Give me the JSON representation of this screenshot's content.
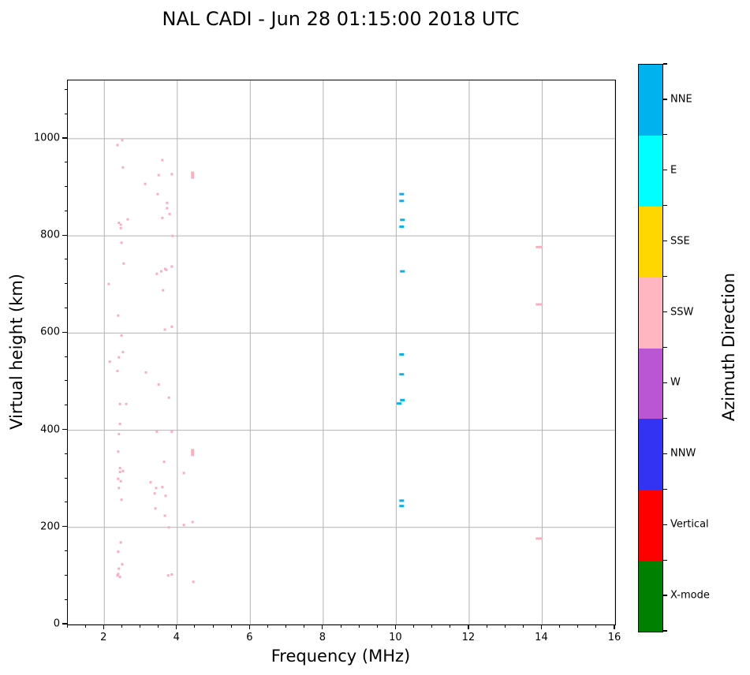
{
  "chart_data": {
    "type": "scatter",
    "title": "NAL CADI - Jun 28 01:15:00 2018 UTC",
    "xlabel": "Frequency (MHz)",
    "ylabel": "Virtual height (km)",
    "colorbar_label": "Azimuth Direction",
    "xlim": [
      1,
      16
    ],
    "ylim": [
      0,
      1120
    ],
    "xticks": [
      2,
      4,
      6,
      8,
      10,
      12,
      14,
      16
    ],
    "yticks": [
      0,
      200,
      400,
      600,
      800,
      1000
    ],
    "x_minor_step": 0.5,
    "y_minor_step": 50,
    "grid": "on",
    "grid_color": "#b3b3b3",
    "legend_position": "right-colorbar",
    "colorbar_categories": [
      {
        "label": "NNE",
        "color": "#00B2EE"
      },
      {
        "label": "E",
        "color": "#00FFFF"
      },
      {
        "label": "SSE",
        "color": "#FFD700"
      },
      {
        "label": "SSW",
        "color": "#FFB6C1"
      },
      {
        "label": "W",
        "color": "#BA55D3"
      },
      {
        "label": "NNW",
        "color": "#3333F3"
      },
      {
        "label": "Vertical",
        "color": "#FF0000"
      },
      {
        "label": "X-mode",
        "color": "#008000"
      }
    ],
    "series": [
      {
        "name": "ssw-echo-points",
        "azimuth": "SSW",
        "color": "#FAAFC0",
        "marker": "dot",
        "points": [
          [
            2.49,
            997
          ],
          [
            2.36,
            987
          ],
          [
            3.59,
            956
          ],
          [
            2.51,
            941
          ],
          [
            3.49,
            925
          ],
          [
            3.85,
            927
          ],
          [
            3.12,
            907
          ],
          [
            3.46,
            886
          ],
          [
            3.72,
            868
          ],
          [
            3.72,
            857
          ],
          [
            3.79,
            845
          ],
          [
            3.59,
            837
          ],
          [
            2.64,
            834
          ],
          [
            2.4,
            827
          ],
          [
            2.45,
            823
          ],
          [
            2.45,
            816
          ],
          [
            3.87,
            800
          ],
          [
            2.47,
            786
          ],
          [
            2.53,
            743
          ],
          [
            3.85,
            737
          ],
          [
            3.67,
            732
          ],
          [
            3.7,
            730
          ],
          [
            3.56,
            727
          ],
          [
            3.44,
            722
          ],
          [
            2.12,
            701
          ],
          [
            3.61,
            688
          ],
          [
            2.38,
            636
          ],
          [
            3.85,
            613
          ],
          [
            3.66,
            607
          ],
          [
            2.47,
            595
          ],
          [
            2.51,
            561
          ],
          [
            2.4,
            550
          ],
          [
            2.15,
            541
          ],
          [
            2.36,
            522
          ],
          [
            3.14,
            519
          ],
          [
            3.49,
            494
          ],
          [
            3.77,
            467
          ],
          [
            2.43,
            454
          ],
          [
            2.6,
            454
          ],
          [
            2.43,
            413
          ],
          [
            3.44,
            397
          ],
          [
            3.85,
            397
          ],
          [
            2.4,
            392
          ],
          [
            2.38,
            356
          ],
          [
            3.64,
            335
          ],
          [
            2.43,
            322
          ],
          [
            2.51,
            316
          ],
          [
            2.43,
            314
          ],
          [
            4.18,
            312
          ],
          [
            2.38,
            300
          ],
          [
            2.45,
            295
          ],
          [
            3.27,
            293
          ],
          [
            3.42,
            281
          ],
          [
            2.4,
            281
          ],
          [
            3.59,
            283
          ],
          [
            3.38,
            270
          ],
          [
            3.68,
            265
          ],
          [
            2.47,
            257
          ],
          [
            3.4,
            239
          ],
          [
            3.66,
            224
          ],
          [
            4.42,
            211
          ],
          [
            4.18,
            205
          ],
          [
            3.77,
            200
          ],
          [
            2.45,
            169
          ],
          [
            2.38,
            150
          ],
          [
            2.49,
            124
          ],
          [
            2.4,
            115
          ],
          [
            2.38,
            104
          ],
          [
            3.85,
            103
          ],
          [
            2.36,
            101
          ],
          [
            3.75,
            101
          ],
          [
            2.43,
            98
          ],
          [
            4.44,
            88
          ]
        ]
      },
      {
        "name": "ssw-echo-tall-marks",
        "azimuth": "SSW",
        "color": "#FAAFC0",
        "marker": "tall",
        "points": [
          [
            4.42,
            925
          ],
          [
            4.42,
            354
          ]
        ]
      },
      {
        "name": "nne-echo-dashes",
        "azimuth": "NNE",
        "color": "#00B2EE",
        "marker": "dash",
        "points": [
          [
            10.15,
            886
          ],
          [
            10.15,
            872
          ],
          [
            10.17,
            833
          ],
          [
            10.15,
            819
          ],
          [
            10.17,
            727
          ],
          [
            10.15,
            556
          ],
          [
            10.15,
            515
          ],
          [
            10.17,
            462
          ],
          [
            10.08,
            455
          ],
          [
            10.15,
            255
          ],
          [
            10.15,
            244
          ]
        ]
      },
      {
        "name": "ssw-echo-dashes-14mhz",
        "azimuth": "SSW",
        "color": "#FAAFC0",
        "marker": "dash_wide",
        "points": [
          [
            13.92,
            777
          ],
          [
            13.92,
            659
          ],
          [
            13.92,
            177
          ]
        ]
      }
    ]
  }
}
